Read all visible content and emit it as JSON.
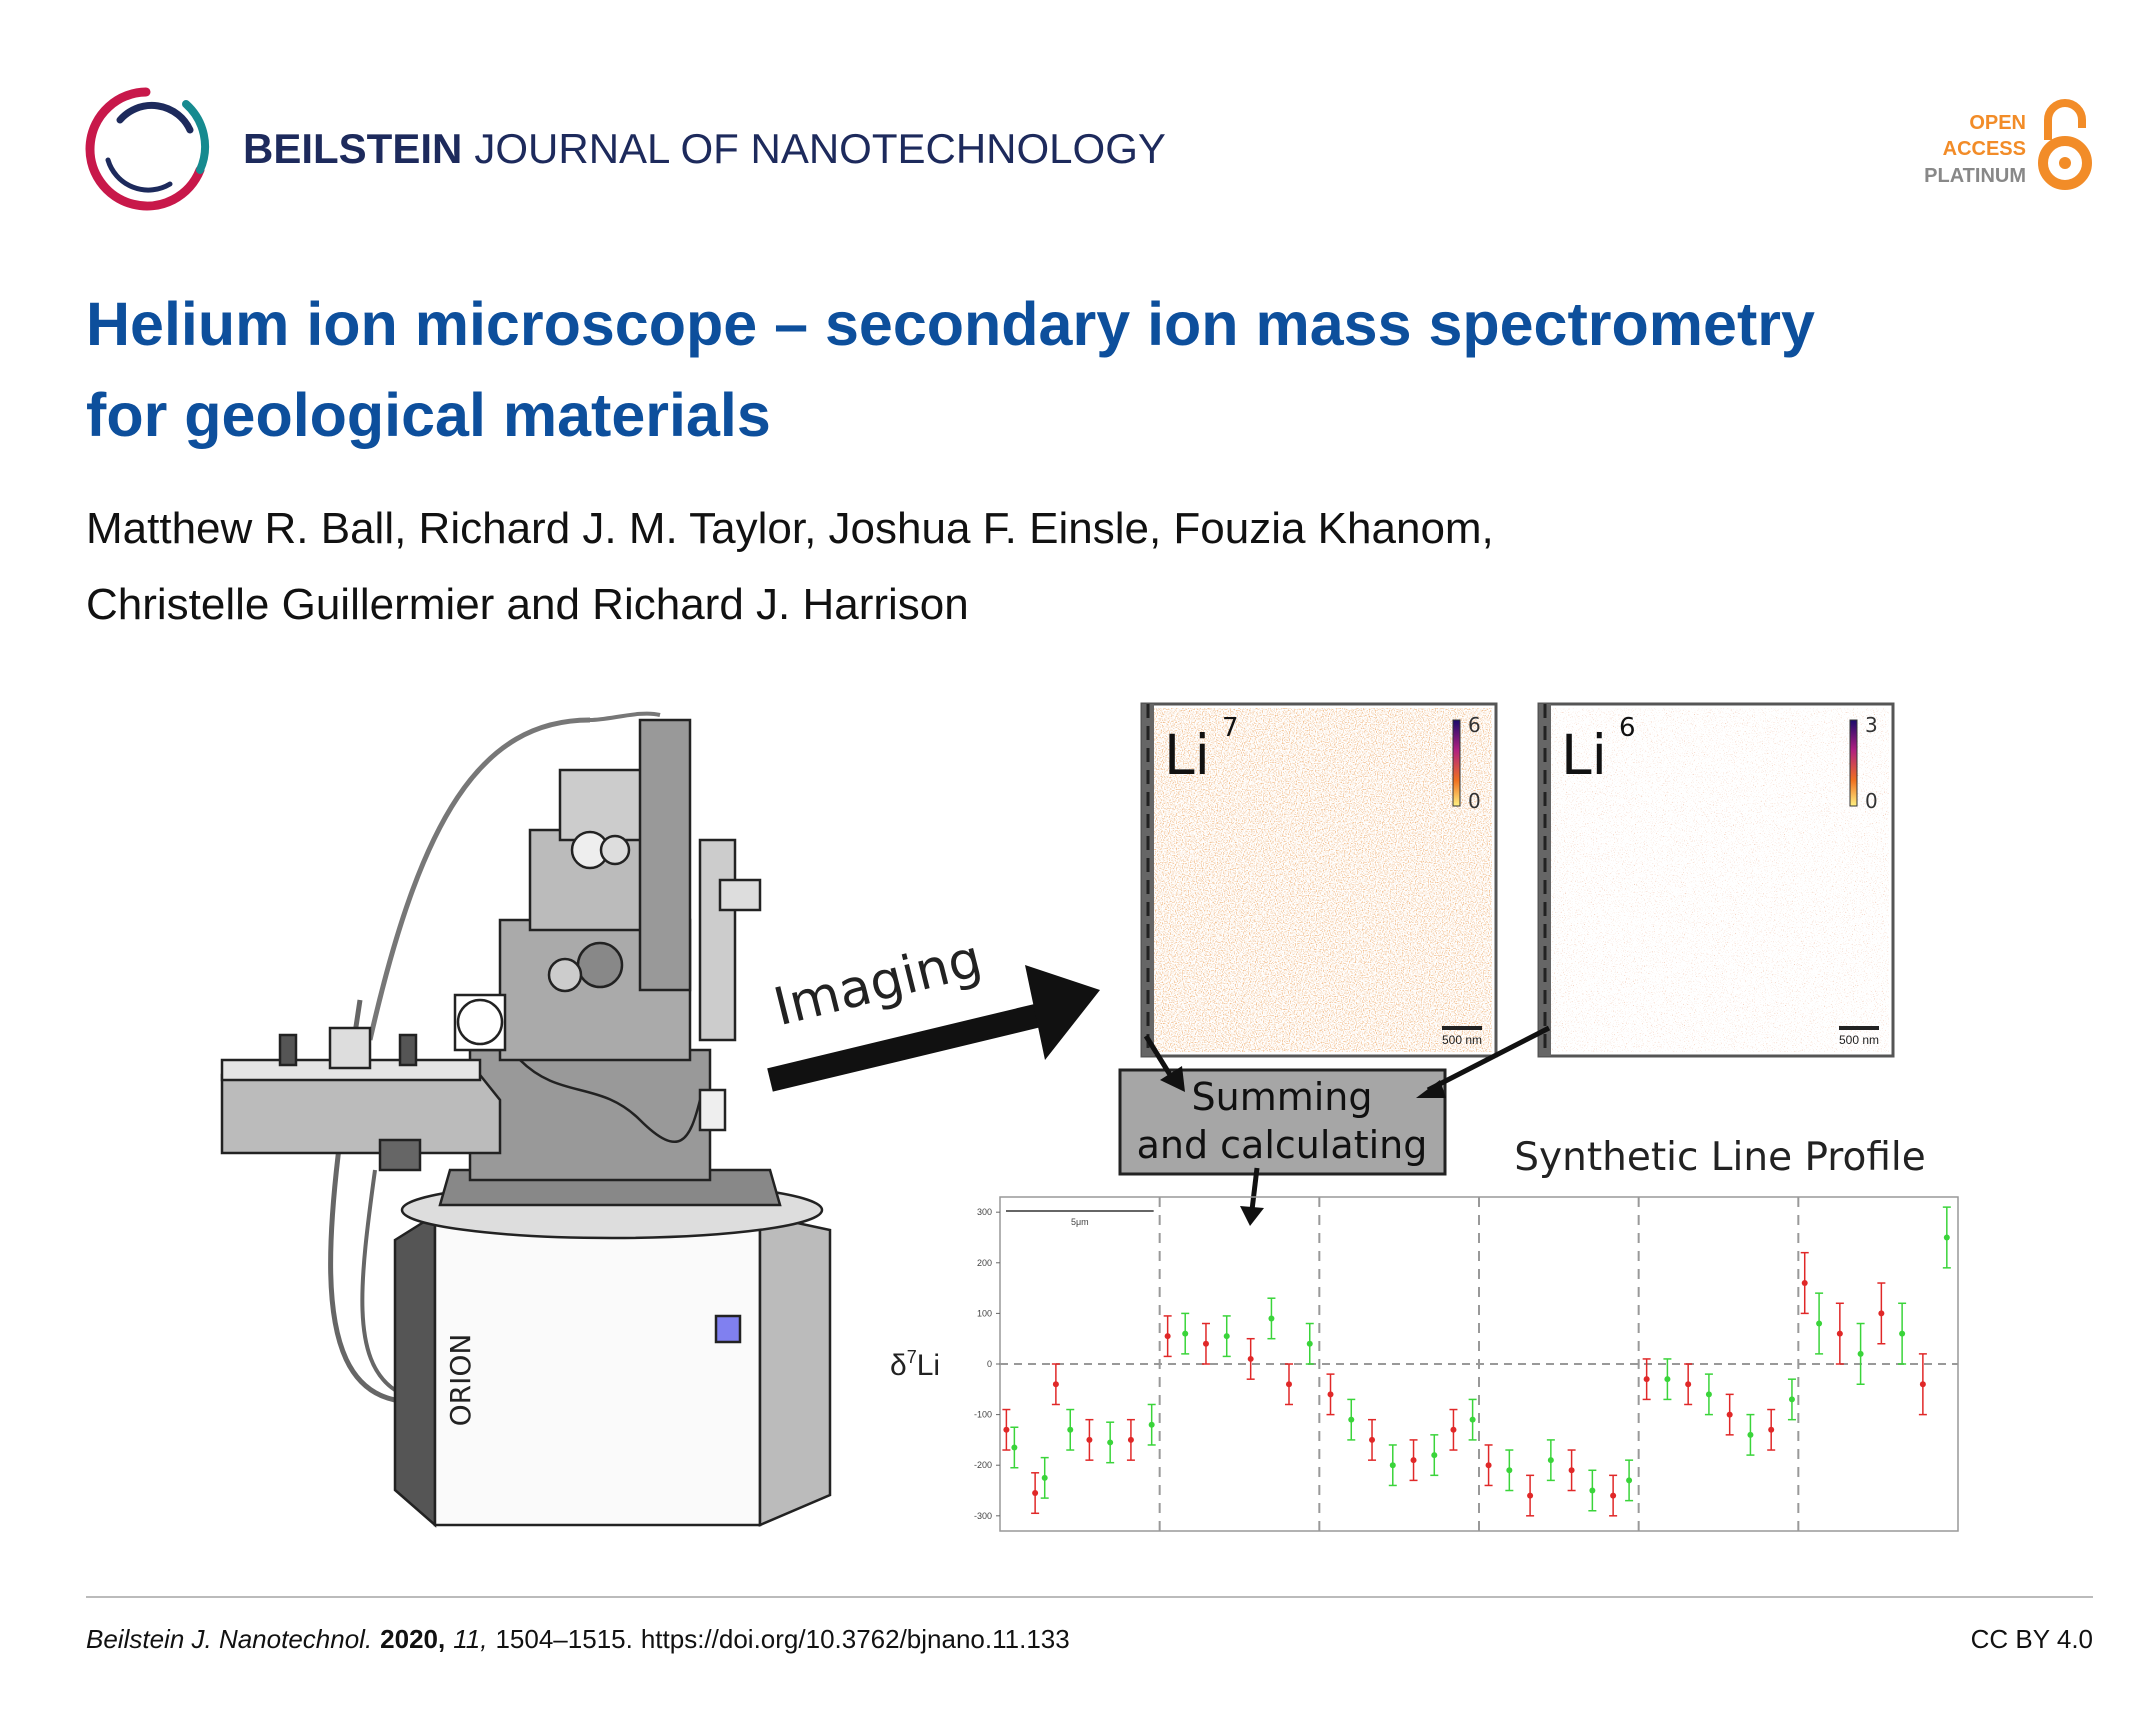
{
  "header": {
    "journal_bold": "BEILSTEIN",
    "journal_rest": "JOURNAL OF NANOTECHNOLOGY",
    "badge": [
      "OPEN",
      "ACCESS",
      "PLATINUM"
    ]
  },
  "title_lines": [
    "Helium ion microscope – secondary ion mass spectrometry",
    "for geological materials"
  ],
  "author_lines": [
    "Matthew R. Ball, Richard J. M. Taylor, Joshua F. Einsle, Fouzia Khanom,",
    "Christelle Guillermier and Richard J. Harrison"
  ],
  "figure": {
    "instrument_label": "ORION",
    "imaging_label": "Imaging",
    "maps": [
      {
        "element": "Li",
        "mass": "7",
        "colorbar_max": 6,
        "colorbar_min": 0,
        "scale_bar": "500 nm"
      },
      {
        "element": "Li",
        "mass": "6",
        "colorbar_max": 3,
        "colorbar_min": 0,
        "scale_bar": "500 nm"
      }
    ],
    "process_lines": [
      "Summing",
      "and calculating"
    ],
    "profile": {
      "type": "errorbar",
      "title": "Synthetic Line Profile",
      "y_label": {
        "prefix": "δ",
        "sup": "7",
        "suffix": "Li"
      },
      "scale_bar": "5μm",
      "xlim": [
        0,
        6
      ],
      "xticks": [
        1,
        2,
        3,
        4,
        5
      ],
      "ylim": [
        -330,
        330
      ],
      "yticks": [
        300,
        200,
        100,
        0,
        -100,
        -200,
        -300
      ],
      "point_colors": [
        "#e02828",
        "#3ad43a"
      ],
      "x": [
        0.04,
        0.09,
        0.22,
        0.28,
        0.35,
        0.44,
        0.56,
        0.69,
        0.82,
        0.95,
        1.05,
        1.16,
        1.29,
        1.42,
        1.57,
        1.7,
        1.81,
        1.94,
        2.07,
        2.2,
        2.33,
        2.46,
        2.59,
        2.72,
        2.84,
        2.96,
        3.06,
        3.19,
        3.32,
        3.45,
        3.58,
        3.71,
        3.84,
        3.94,
        4.05,
        4.18,
        4.31,
        4.44,
        4.57,
        4.7,
        4.83,
        4.96,
        5.04,
        5.13,
        5.26,
        5.39,
        5.52,
        5.65,
        5.78,
        5.93
      ],
      "values": [
        -130,
        -165,
        -255,
        -225,
        -40,
        -130,
        -150,
        -155,
        -150,
        -120,
        55,
        60,
        40,
        55,
        10,
        90,
        -40,
        40,
        -60,
        -110,
        -150,
        -200,
        -190,
        -180,
        -130,
        -110,
        -200,
        -210,
        -260,
        -190,
        -210,
        -250,
        -260,
        -230,
        -30,
        -30,
        -40,
        -60,
        -100,
        -140,
        -130,
        -70,
        160,
        80,
        60,
        20,
        100,
        60,
        -40,
        250
      ],
      "errors": [
        40,
        40,
        40,
        40,
        40,
        40,
        40,
        40,
        40,
        40,
        40,
        40,
        40,
        40,
        40,
        40,
        40,
        40,
        40,
        40,
        40,
        40,
        40,
        40,
        40,
        40,
        40,
        40,
        40,
        40,
        40,
        40,
        40,
        40,
        40,
        40,
        40,
        40,
        40,
        40,
        40,
        40,
        60,
        60,
        60,
        60,
        60,
        60,
        60,
        60
      ]
    }
  },
  "footer": {
    "journal": "Beilstein J. Nanotechnol.",
    "year": "2020,",
    "volume": "11,",
    "pages": "1504–1515.",
    "doi": "https://doi.org/10.3762/bjnano.11.133",
    "license": "CC BY 4.0"
  }
}
